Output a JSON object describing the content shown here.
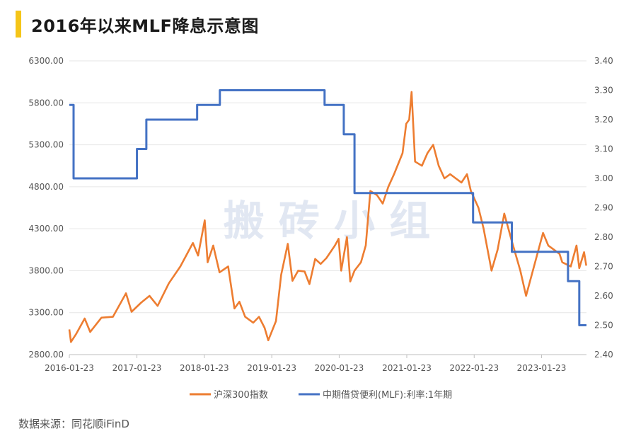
{
  "header": {
    "title": "2016年以来MLF降息示意图"
  },
  "watermark": "搬 砖 小 组",
  "source": "数据来源：同花顺iFinD",
  "colors": {
    "accent": "#f5c518",
    "csi300": "#ed7d31",
    "mlf": "#4472c4"
  },
  "chart_data": {
    "type": "line",
    "x_ticks": [
      "2016-01-23",
      "2017-01-23",
      "2018-01-23",
      "2019-01-23",
      "2020-01-23",
      "2021-01-23",
      "2022-01-23",
      "2023-01-23"
    ],
    "y_left": {
      "ticks": [
        "6300.00",
        "5800.00",
        "5300.00",
        "4800.00",
        "4300.00",
        "3800.00",
        "3300.00",
        "2800.00"
      ],
      "range": [
        2800,
        6300
      ]
    },
    "y_right": {
      "ticks": [
        "3.40",
        "3.30",
        "3.20",
        "3.10",
        "3.00",
        "2.90",
        "2.80",
        "2.70",
        "2.60",
        "2.50",
        "2.40"
      ],
      "range": [
        2.4,
        3.4
      ]
    },
    "legend": [
      "沪深300指数",
      "中期借贷便利(MLF):利率:1年期"
    ],
    "series": [
      {
        "name": "沪深300指数",
        "axis": "left",
        "points": [
          [
            "2016-01-23",
            3100
          ],
          [
            "2016-02-01",
            2950
          ],
          [
            "2016-03-01",
            3050
          ],
          [
            "2016-04-15",
            3230
          ],
          [
            "2016-05-15",
            3070
          ],
          [
            "2016-07-15",
            3240
          ],
          [
            "2016-09-15",
            3250
          ],
          [
            "2016-11-25",
            3530
          ],
          [
            "2016-12-25",
            3310
          ],
          [
            "2017-02-15",
            3420
          ],
          [
            "2017-04-01",
            3500
          ],
          [
            "2017-05-15",
            3380
          ],
          [
            "2017-07-15",
            3650
          ],
          [
            "2017-09-15",
            3850
          ],
          [
            "2017-11-22",
            4130
          ],
          [
            "2017-12-20",
            3980
          ],
          [
            "2018-01-25",
            4400
          ],
          [
            "2018-02-10",
            3900
          ],
          [
            "2018-03-12",
            4100
          ],
          [
            "2018-04-15",
            3780
          ],
          [
            "2018-06-01",
            3850
          ],
          [
            "2018-07-05",
            3350
          ],
          [
            "2018-08-01",
            3430
          ],
          [
            "2018-09-01",
            3250
          ],
          [
            "2018-10-15",
            3180
          ],
          [
            "2018-11-15",
            3250
          ],
          [
            "2018-12-15",
            3120
          ],
          [
            "2019-01-04",
            2970
          ],
          [
            "2019-02-15",
            3200
          ],
          [
            "2019-03-15",
            3750
          ],
          [
            "2019-04-20",
            4120
          ],
          [
            "2019-05-15",
            3680
          ],
          [
            "2019-06-15",
            3800
          ],
          [
            "2019-07-20",
            3790
          ],
          [
            "2019-08-15",
            3640
          ],
          [
            "2019-09-15",
            3940
          ],
          [
            "2019-10-15",
            3880
          ],
          [
            "2019-11-15",
            3950
          ],
          [
            "2019-12-31",
            4100
          ],
          [
            "2020-01-20",
            4180
          ],
          [
            "2020-02-03",
            3800
          ],
          [
            "2020-03-05",
            4200
          ],
          [
            "2020-03-23",
            3670
          ],
          [
            "2020-04-15",
            3800
          ],
          [
            "2020-05-20",
            3900
          ],
          [
            "2020-06-15",
            4100
          ],
          [
            "2020-07-10",
            4750
          ],
          [
            "2020-08-15",
            4700
          ],
          [
            "2020-09-15",
            4600
          ],
          [
            "2020-10-15",
            4800
          ],
          [
            "2020-11-15",
            4950
          ],
          [
            "2020-12-31",
            5200
          ],
          [
            "2021-01-20",
            5550
          ],
          [
            "2021-02-05",
            5600
          ],
          [
            "2021-02-18",
            5930
          ],
          [
            "2021-03-09",
            5100
          ],
          [
            "2021-04-15",
            5050
          ],
          [
            "2021-05-15",
            5200
          ],
          [
            "2021-06-15",
            5300
          ],
          [
            "2021-07-15",
            5050
          ],
          [
            "2021-08-15",
            4900
          ],
          [
            "2021-09-15",
            4950
          ],
          [
            "2021-10-15",
            4900
          ],
          [
            "2021-11-15",
            4850
          ],
          [
            "2021-12-15",
            4950
          ],
          [
            "2022-01-05",
            4750
          ],
          [
            "2022-02-15",
            4550
          ],
          [
            "2022-03-15",
            4300
          ],
          [
            "2022-04-27",
            3800
          ],
          [
            "2022-05-30",
            4050
          ],
          [
            "2022-07-05",
            4480
          ],
          [
            "2022-08-15",
            4150
          ],
          [
            "2022-09-30",
            3800
          ],
          [
            "2022-10-31",
            3500
          ],
          [
            "2022-12-31",
            4000
          ],
          [
            "2023-01-31",
            4250
          ],
          [
            "2023-02-28",
            4100
          ],
          [
            "2023-03-31",
            4050
          ],
          [
            "2023-04-30",
            4000
          ],
          [
            "2023-05-15",
            3900
          ],
          [
            "2023-06-30",
            3850
          ],
          [
            "2023-07-31",
            4100
          ],
          [
            "2023-08-15",
            3830
          ],
          [
            "2023-09-10",
            4020
          ],
          [
            "2023-09-22",
            3860
          ]
        ]
      },
      {
        "name": "中期借贷便利(MLF):利率:1年期",
        "axis": "right",
        "step": true,
        "points": [
          [
            "2016-01-23",
            3.25
          ],
          [
            "2016-02-15",
            3.0
          ],
          [
            "2016-12-15",
            3.0
          ],
          [
            "2017-01-23",
            3.1
          ],
          [
            "2017-03-15",
            3.2
          ],
          [
            "2017-12-15",
            3.25
          ],
          [
            "2018-04-17",
            3.3
          ],
          [
            "2019-11-05",
            3.25
          ],
          [
            "2020-02-17",
            3.15
          ],
          [
            "2020-04-15",
            2.95
          ],
          [
            "2022-01-17",
            2.85
          ],
          [
            "2022-08-15",
            2.75
          ],
          [
            "2023-06-15",
            2.65
          ],
          [
            "2023-08-15",
            2.5
          ]
        ]
      }
    ]
  }
}
